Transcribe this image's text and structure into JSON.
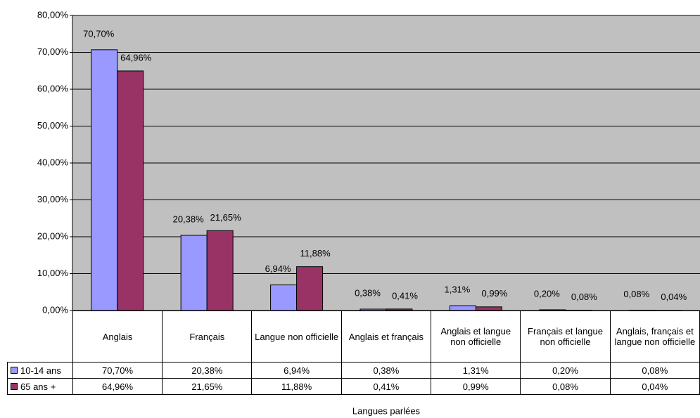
{
  "chart_data": {
    "type": "bar",
    "xlabel": "Langues parlées",
    "categories": [
      "Anglais",
      "Français",
      "Langue non officielle",
      "Anglais et français",
      "Anglais et langue non officielle",
      "Français et langue non officielle",
      "Anglais, français et langue non officielle"
    ],
    "series": [
      {
        "name": "10-14 ans",
        "color": "#9999ff",
        "values": [
          70.7,
          20.38,
          6.94,
          0.38,
          1.31,
          0.2,
          0.08
        ],
        "value_labels": [
          "70,70%",
          "20,38%",
          "6,94%",
          "0,38%",
          "1,31%",
          "0,20%",
          "0,08%"
        ]
      },
      {
        "name": "65 ans +",
        "color": "#993366",
        "values": [
          64.96,
          21.65,
          11.88,
          0.41,
          0.99,
          0.08,
          0.04
        ],
        "value_labels": [
          "64,96%",
          "21,65%",
          "11,88%",
          "0,41%",
          "0,99%",
          "0,08%",
          "0,04%"
        ]
      }
    ],
    "ylim": [
      0,
      80
    ],
    "yticks": [
      {
        "value": 0,
        "label": "0,00%"
      },
      {
        "value": 10,
        "label": "10,00%"
      },
      {
        "value": 20,
        "label": "20,00%"
      },
      {
        "value": 30,
        "label": "30,00%"
      },
      {
        "value": 40,
        "label": "40,00%"
      },
      {
        "value": 50,
        "label": "50,00%"
      },
      {
        "value": 60,
        "label": "60,00%"
      },
      {
        "value": 70,
        "label": "70,00%"
      },
      {
        "value": 80,
        "label": "80,00%"
      }
    ],
    "grid": true,
    "plot_background": "#c0c0c0"
  }
}
